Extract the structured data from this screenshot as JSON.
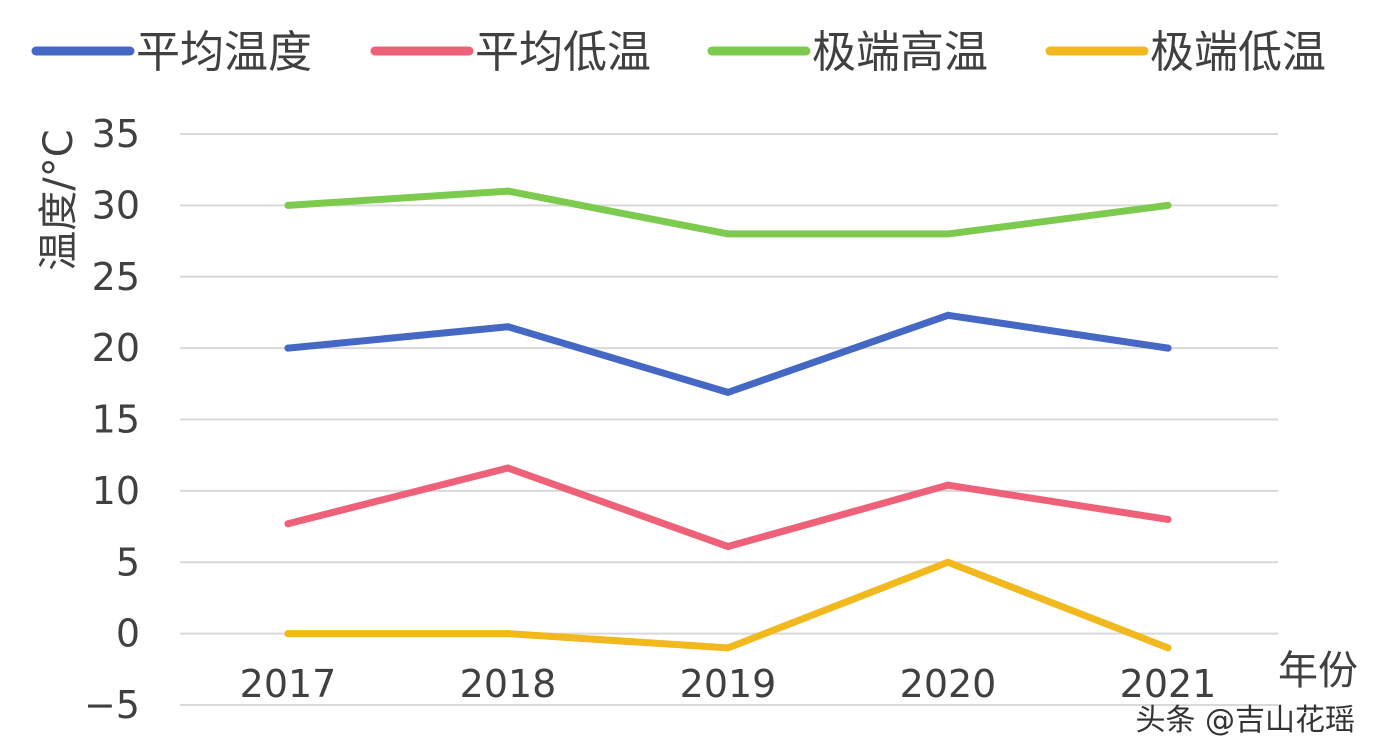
{
  "chart_data": {
    "type": "line",
    "categories": [
      "2017",
      "2018",
      "2019",
      "2020",
      "2021"
    ],
    "series": [
      {
        "name": "平均温度",
        "color": "#4468C4",
        "values": [
          20,
          21.5,
          16.9,
          22.3,
          20
        ]
      },
      {
        "name": "平均低温",
        "color": "#EF6178",
        "values": [
          7.7,
          11.6,
          6.1,
          10.4,
          8
        ]
      },
      {
        "name": "极端高温",
        "color": "#7DCB4E",
        "values": [
          30,
          31,
          28,
          28,
          30
        ]
      },
      {
        "name": "极端低温",
        "color": "#F2B91E",
        "values": [
          0,
          0,
          -1,
          5,
          -1
        ]
      }
    ],
    "ylabel": "温度/°C",
    "xlabel": "年份",
    "ylim": [
      -5,
      35
    ],
    "yticks": [
      "35",
      "30",
      "25",
      "20",
      "15",
      "10",
      "5",
      "0",
      "−5"
    ],
    "grid": true,
    "legend_position": "top"
  },
  "watermark": "头条 @吉山花瑶"
}
